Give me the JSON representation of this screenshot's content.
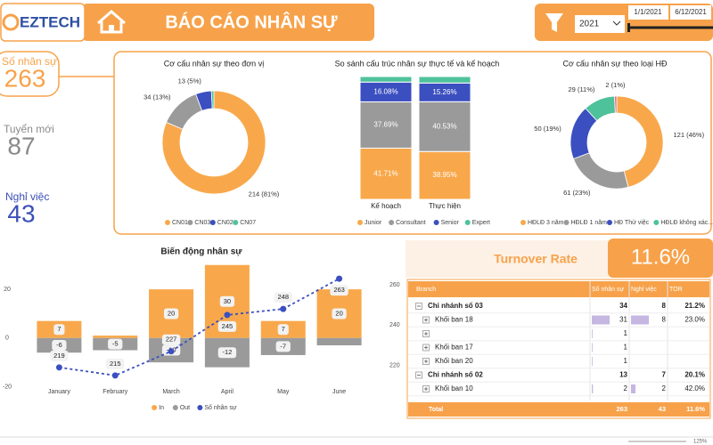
{
  "header": {
    "logo": "EZTECH",
    "title": "BÁO CÁO NHÂN SỰ",
    "year": "2021",
    "date_from": "1/1/2021",
    "date_to": "6/12/2021"
  },
  "kpis": [
    {
      "label": "Số nhân sự",
      "value": 263,
      "color": "#f7a24a"
    },
    {
      "label": "Tuyển mới",
      "value": 87,
      "color": "#8a8a8a"
    },
    {
      "label": "Nghỉ việc",
      "value": 43,
      "color": "#3b4fb8"
    }
  ],
  "chart_data": [
    {
      "type": "donut",
      "title": "Cơ cấu nhân sự theo đơn vị",
      "categories": [
        "CN01",
        "CN03",
        "CN02",
        "CN07"
      ],
      "values": [
        214,
        34,
        13,
        2
      ],
      "value_labels": [
        "214 (81%)",
        "34 (13%)",
        "13 (5%)",
        null
      ],
      "colors": [
        "#f8a84b",
        "#9a9a9a",
        "#3b4fc0",
        "#4ec29a"
      ]
    },
    {
      "type": "stacked100",
      "title": "So sánh cấu trúc nhân sự thực tế và kế hoạch",
      "categories": [
        "Kế hoạch",
        "Thực hiện"
      ],
      "series": [
        {
          "name": "Junior",
          "color": "#f8a84b",
          "values": [
            41.71,
            38.95
          ],
          "value_labels": [
            "41.71%",
            "38.95%"
          ]
        },
        {
          "name": "Consultant",
          "color": "#9a9a9a",
          "values": [
            37.69,
            40.53
          ],
          "value_labels": [
            "37.69%",
            "40.53%"
          ]
        },
        {
          "name": "Senior",
          "color": "#3b4fc0",
          "values": [
            16.08,
            15.26
          ],
          "value_labels": [
            "16.08%",
            "15.26%"
          ]
        },
        {
          "name": "Expert",
          "color": "#4ec29a",
          "values": [
            4.52,
            5.26
          ],
          "value_labels": [
            null,
            null
          ]
        }
      ]
    },
    {
      "type": "donut",
      "title": "Cơ cấu nhân sự theo loại HĐ",
      "categories": [
        "HĐLĐ 3 năm",
        "HĐLĐ 1 năm",
        "HĐ Thử việc",
        "HĐLĐ không xác...",
        null
      ],
      "values": [
        121,
        61,
        50,
        29,
        2
      ],
      "value_labels": [
        "121 (46%)",
        "61 (23%)",
        "50 (19%)",
        "29 (11%)",
        "2 (1%)"
      ],
      "colors": [
        "#f8a84b",
        "#9a9a9a",
        "#3b4fc0",
        "#4ec29a",
        "#e8607a"
      ]
    },
    {
      "type": "combo",
      "title": "Biến động nhân sự",
      "categories": [
        "January",
        "February",
        "March",
        "April",
        "May",
        "June"
      ],
      "ylim": [
        -22,
        31
      ],
      "yticks": [
        -20,
        0,
        20
      ],
      "y2lim": [
        207,
        271
      ],
      "y2ticks": [
        220,
        240,
        260
      ],
      "series": [
        {
          "name": "In",
          "color": "#f8a84b",
          "values": [
            7,
            1,
            20,
            30,
            7,
            20
          ],
          "value_labels": [
            "7",
            null,
            "20",
            "30",
            "7",
            "20"
          ]
        },
        {
          "name": "Out",
          "color": "#9a9a9a",
          "values": [
            -6,
            -5,
            -10,
            -12,
            -7,
            -3
          ],
          "value_labels": [
            "-6",
            "-5",
            "-10",
            "-12",
            "-7",
            null
          ]
        },
        {
          "name": "Số nhân sự",
          "color": "#3b4fc0",
          "axis": "y2",
          "values": [
            219,
            215,
            227,
            245,
            248,
            263
          ]
        }
      ]
    }
  ],
  "turnover": {
    "label": "Turnover Rate",
    "value": "11.6%"
  },
  "table": {
    "columns": [
      "Branch",
      "Số nhân sự",
      "Nghỉ việc",
      "TOR"
    ],
    "groups": [
      {
        "name": "Chi nhánh số 03",
        "values": [
          34,
          8,
          "21.2%"
        ],
        "rows": [
          {
            "name": "Khối ban 18",
            "values": [
              31,
              8,
              "23.0%"
            ]
          },
          {
            "name": null,
            "values": [
              1,
              null,
              null
            ]
          },
          {
            "name": "Khối ban 17",
            "values": [
              1,
              null,
              null
            ]
          },
          {
            "name": "Khối ban 20",
            "values": [
              1,
              null,
              null
            ]
          }
        ]
      },
      {
        "name": "Chi nhánh số 02",
        "values": [
          13,
          7,
          "20.1%"
        ],
        "rows": [
          {
            "name": "Khối ban 10",
            "values": [
              2,
              2,
              "42.0%"
            ]
          }
        ]
      }
    ],
    "total": {
      "name": "Total",
      "values": [
        263,
        43,
        "11.6%"
      ]
    }
  },
  "zoom": "125%"
}
